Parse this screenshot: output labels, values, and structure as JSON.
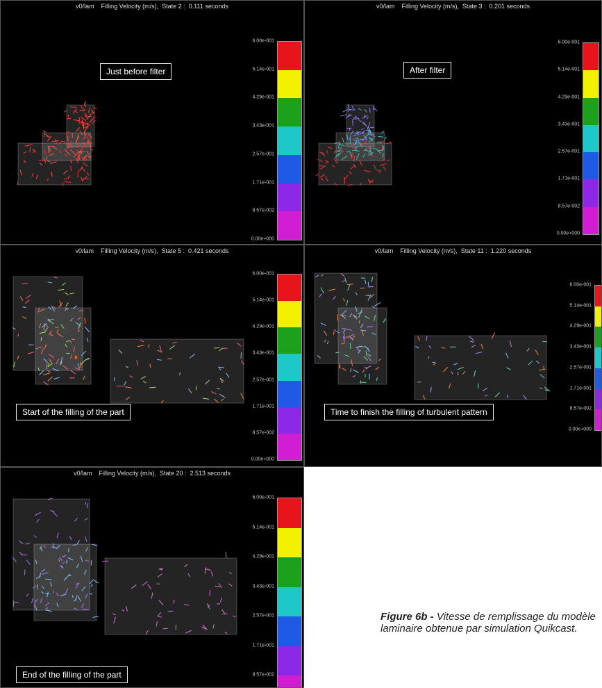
{
  "panels": [
    {
      "header": "v0/lam    Filling Velocity (m/s),  State 2 :  0.111 seconds",
      "annotation": "Just before filter",
      "legend_labels": [
        "6.00e-001",
        "5.14e-001",
        "4.29e-001",
        "3.43e-001",
        "2.57e-001",
        "1.71e-001",
        "8.57e-002",
        "0.00e+000"
      ]
    },
    {
      "header": "v0/lam    Filling Velocity (m/s),  State 3 :  0.201 seconds",
      "annotation": "After filter",
      "legend_labels": [
        "6.00e-001",
        "5.14e-001",
        "4.29e-001",
        "3.43e-001",
        "2.57e-001",
        "1.71e-001",
        "8.57e-002",
        "0.00e+000"
      ]
    },
    {
      "header": "v0/lam    Filling Velocity (m/s),  State 5 :  0.421 seconds",
      "annotation": "Start of the filling of the part",
      "legend_labels": [
        "6.00e-001",
        "5.14e-001",
        "4.29e-001",
        "3.43e-001",
        "2.57e-001",
        "1.71e-001",
        "8.57e-002",
        "0.00e+000"
      ]
    },
    {
      "header": "v0/lam    Filling Velocity (m/s),  State 11 :  1.220 seconds",
      "annotation": "Time to finish the filling of turbulent pattern",
      "legend_labels": [
        "6.00e-001",
        "5.14e-001",
        "4.29e-001",
        "3.43e-001",
        "2.57e-001",
        "1.71e-001",
        "8.57e-002",
        "0.00e+000"
      ]
    },
    {
      "header": "v0/lam    Filling Velocity (m/s),  State 20 :  2.513 seconds",
      "annotation": "End of the filling of the part",
      "legend_labels": [
        "6.00e-001",
        "5.14e-001",
        "4.29e-001",
        "3.43e-001",
        "2.57e-001",
        "1.71e-001",
        "8.57e-002"
      ]
    }
  ],
  "caption": {
    "label": "Figure 6b -",
    "text": "Vitesse de remplissage du modèle laminaire obtenue par simulation Quikcast."
  }
}
